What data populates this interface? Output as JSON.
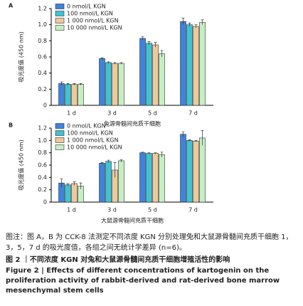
{
  "chart_data": [
    {
      "type": "bar",
      "panel_label": "A",
      "ylabel": "吸光度值 (450 nm)",
      "xlabel": "兔源骨髓间充质干细胞",
      "categories": [
        "1 d",
        "3 d",
        "5 d",
        "7 d"
      ],
      "series": [
        {
          "name": "0 nmol/L KGN",
          "color": "#3f83dc",
          "values": [
            0.27,
            0.58,
            0.83,
            1.04
          ],
          "errors": [
            0.02,
            0.01,
            0.02,
            0.04
          ]
        },
        {
          "name": "100 nmol/L KGN",
          "color": "#3fc3d3",
          "values": [
            0.26,
            0.53,
            0.77,
            1.0
          ],
          "errors": [
            0.01,
            0.01,
            0.02,
            0.02
          ]
        },
        {
          "name": "1 000 nmol/L KGN",
          "color": "#ecca9c",
          "values": [
            0.26,
            0.52,
            0.75,
            0.98
          ],
          "errors": [
            0.01,
            0.01,
            0.03,
            0.02
          ]
        },
        {
          "name": "10 000 nmol/L KGN",
          "color": "#c5efc3",
          "values": [
            0.26,
            0.52,
            0.64,
            1.03
          ],
          "errors": [
            0.01,
            0.01,
            0.04,
            0.03
          ]
        }
      ],
      "ylim": [
        0,
        1.2
      ],
      "yticks": [
        0,
        0.2,
        0.4,
        0.6,
        0.8,
        {
          "value": 1,
          "label": "1.0"
        },
        1.2
      ]
    },
    {
      "type": "bar",
      "panel_label": "B",
      "ylabel": "吸光度值 (450 nm)",
      "xlabel": "大鼠源骨髓间充质干细胞",
      "categories": [
        "1 d",
        "3 d",
        "5 d",
        "7 d"
      ],
      "series": [
        {
          "name": "0 nmol/L KGN",
          "color": "#3f83dc",
          "values": [
            0.31,
            0.63,
            0.8,
            1.1
          ],
          "errors": [
            0.07,
            0.01,
            0.01,
            0.04
          ]
        },
        {
          "name": "100 nmol/L KGN",
          "color": "#3fc3d3",
          "values": [
            0.28,
            0.66,
            0.79,
            1.0
          ],
          "errors": [
            0.02,
            0.02,
            0.01,
            0.01
          ]
        },
        {
          "name": "1 000 nmol/L KGN",
          "color": "#ecca9c",
          "values": [
            0.3,
            0.52,
            0.79,
            0.99
          ],
          "errors": [
            0.03,
            0.12,
            0.01,
            0.01
          ]
        },
        {
          "name": "10 000 nmol/L KGN",
          "color": "#c5efc3",
          "values": [
            0.26,
            0.67,
            0.77,
            1.04
          ],
          "errors": [
            0.05,
            0.02,
            0.04,
            0.12
          ]
        }
      ],
      "ylim": [
        0,
        1.2
      ],
      "yticks": [
        0,
        0.2,
        0.4,
        0.6,
        0.8,
        {
          "value": 1,
          "label": "1.0"
        },
        1.2
      ]
    }
  ],
  "caption": {
    "note": "图注：图 A，B 为 CCK-8 法测定不同浓度 KGN 分别处理兔和大鼠源骨髓间充质干细胞 1，3，5，7 d 的吸光度值，各组之间无统计学差异 (n=6)。",
    "title_cn": "图 2 ｜不同浓度 KGN 对兔和大鼠源骨髓间充质干细胞增殖活性的影响",
    "title_en": "Figure 2 | Effects of different concentrations of kartogenin on the proliferation activity of rabbit-derived and rat-derived bone marrow mesenchymal stem cells"
  }
}
